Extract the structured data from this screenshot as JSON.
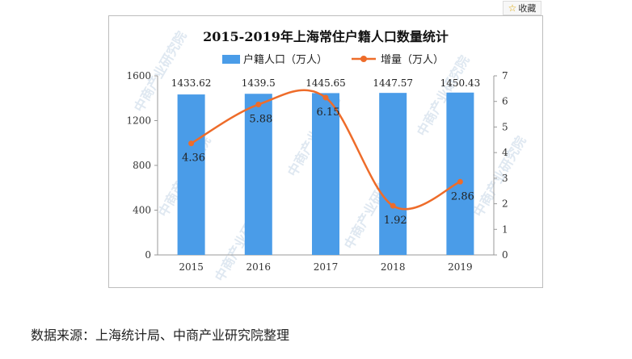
{
  "favorite_button": {
    "label": "收藏",
    "icon": "star-icon"
  },
  "watermark": "中商产业研究院",
  "source_text": "数据来源：上海统计局、中商产业研究院整理",
  "chart_data": {
    "type": "bar+line",
    "title": "2015-2019年上海常住户籍人口数量统计",
    "categories": [
      "2015",
      "2016",
      "2017",
      "2018",
      "2019"
    ],
    "series": [
      {
        "name": "户籍人口（万人）",
        "type": "bar",
        "axis": "left",
        "color": "#4a9ce8",
        "values": [
          1433.62,
          1439.5,
          1445.65,
          1447.57,
          1450.43
        ],
        "labels": [
          "1433.62",
          "1439.5",
          "1445.65",
          "1447.57",
          "1450.43"
        ]
      },
      {
        "name": "增量（万人）",
        "type": "line",
        "axis": "right",
        "color": "#ee6c2a",
        "values": [
          4.36,
          5.88,
          6.15,
          1.92,
          2.86
        ],
        "labels": [
          "4.36",
          "5.88",
          "6.15",
          "1.92",
          "2.86"
        ]
      }
    ],
    "y_left": {
      "range": [
        0,
        1600
      ],
      "ticks": [
        0,
        400,
        800,
        1200,
        1600
      ]
    },
    "y_right": {
      "range": [
        0,
        7
      ],
      "ticks": [
        0,
        1,
        2,
        3,
        4,
        5,
        6,
        7
      ]
    },
    "legend_position": "top-center",
    "grid": false
  }
}
